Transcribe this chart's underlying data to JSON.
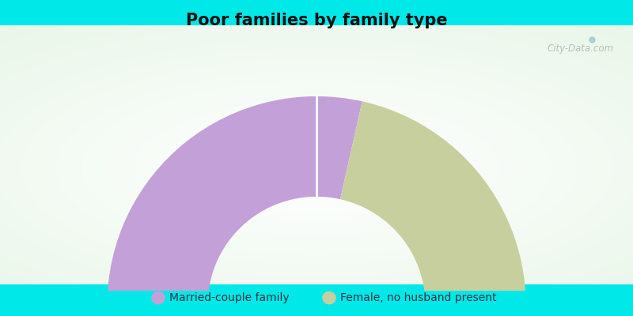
{
  "title": "Poor families by family type",
  "title_fontsize": 15,
  "segments": [
    "Married-couple family",
    "Female, no husband present"
  ],
  "values": [
    57,
    43
  ],
  "colors": [
    "#c4a0d8",
    "#c8cf9e"
  ],
  "background_color": "#00e8e8",
  "chart_bg_color": "#e0f0e8",
  "watermark": "City-Data.com",
  "legend_fontsize": 10,
  "outer_r": 1.0,
  "inner_r": 0.52
}
